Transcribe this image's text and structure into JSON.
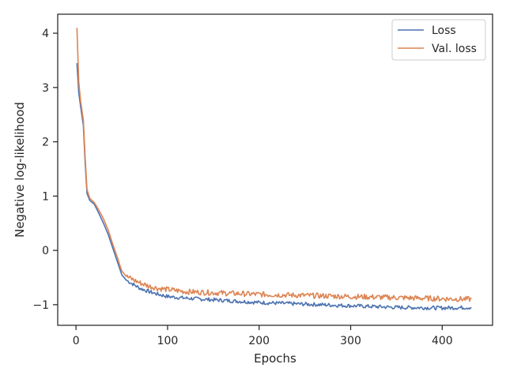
{
  "chart_data": {
    "type": "line",
    "xlabel": "Epochs",
    "ylabel": "Negative log-likelihood",
    "xlim": [
      -20,
      455
    ],
    "ylim": [
      -1.38,
      4.35
    ],
    "xticks": [
      0,
      100,
      200,
      300,
      400
    ],
    "yticks": [
      -1,
      0,
      1,
      2,
      3,
      4
    ],
    "grid": false,
    "legend": "top-right",
    "x": [
      1,
      3,
      5,
      8,
      10,
      12,
      15,
      20,
      25,
      30,
      35,
      40,
      45,
      48,
      50,
      55,
      60,
      70,
      80,
      90,
      100,
      120,
      150,
      200,
      250,
      300,
      350,
      400,
      432
    ],
    "series": [
      {
        "name": "Loss",
        "color": "#4c72b0",
        "values": [
          3.45,
          2.9,
          2.65,
          2.3,
          1.6,
          1.05,
          0.92,
          0.85,
          0.68,
          0.5,
          0.3,
          0.05,
          -0.2,
          -0.35,
          -0.45,
          -0.55,
          -0.6,
          -0.7,
          -0.76,
          -0.81,
          -0.85,
          -0.88,
          -0.91,
          -0.96,
          -0.99,
          -1.02,
          -1.05,
          -1.06,
          -1.05
        ]
      },
      {
        "name": "Val. loss",
        "color": "#dd8452",
        "values": [
          4.1,
          3.1,
          2.75,
          2.4,
          1.7,
          1.12,
          0.96,
          0.88,
          0.74,
          0.58,
          0.38,
          0.12,
          -0.12,
          -0.28,
          -0.38,
          -0.48,
          -0.52,
          -0.6,
          -0.66,
          -0.7,
          -0.72,
          -0.76,
          -0.78,
          -0.81,
          -0.83,
          -0.85,
          -0.87,
          -0.89,
          -0.9
        ]
      }
    ]
  }
}
